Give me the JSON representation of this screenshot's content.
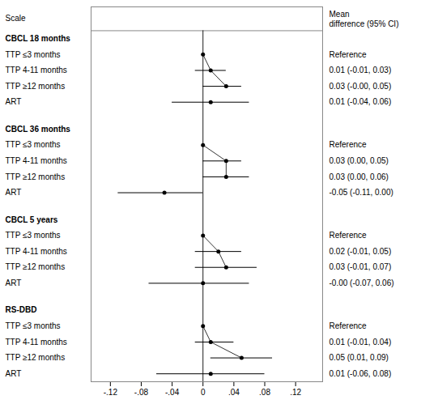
{
  "chart_data": {
    "type": "forest",
    "column_headers": [
      "Scale",
      "Mean\ndifference (95% CI)"
    ],
    "color": "#000000",
    "reference_line": 0,
    "xlim": [
      -0.145,
      0.155
    ],
    "xticks": [
      {
        "value": -0.12,
        "label": "-.12"
      },
      {
        "value": -0.08,
        "label": "-.08"
      },
      {
        "value": -0.04,
        "label": "-.04"
      },
      0,
      {
        "value": 0.04,
        "label": ".04"
      },
      {
        "value": 0.08,
        "label": ".08"
      },
      {
        "value": 0.12,
        "label": ".12"
      }
    ],
    "groups": [
      {
        "title": "CBCL 18 months",
        "rows": [
          {
            "label": "TTP ≤3 months",
            "value": 0.0,
            "ci_low": null,
            "ci_high": null,
            "text": "Reference",
            "connected": true
          },
          {
            "label": "TTP 4-11 months",
            "value": 0.01,
            "ci_low": -0.01,
            "ci_high": 0.03,
            "text": "0.01 (-0.01, 0.03)",
            "connected": true
          },
          {
            "label": "TTP ≥12 months",
            "value": 0.03,
            "ci_low": -0.0,
            "ci_high": 0.05,
            "text": "0.03 (-0.00, 0.05)",
            "connected": true
          },
          {
            "label": "ART",
            "value": 0.01,
            "ci_low": -0.04,
            "ci_high": 0.06,
            "text": "0.01 (-0.04, 0.06)",
            "connected": false
          }
        ]
      },
      {
        "title": "CBCL 36 months",
        "rows": [
          {
            "label": "TTP ≤3 months",
            "value": 0.0,
            "ci_low": null,
            "ci_high": null,
            "text": "Reference",
            "connected": true
          },
          {
            "label": "TTP 4-11 months",
            "value": 0.03,
            "ci_low": 0.0,
            "ci_high": 0.05,
            "text": "0.03 (0.00, 0.05)",
            "connected": true
          },
          {
            "label": "TTP ≥12 months",
            "value": 0.03,
            "ci_low": 0.0,
            "ci_high": 0.06,
            "text": "0.03 (0.00, 0.06)",
            "connected": true
          },
          {
            "label": "ART",
            "value": -0.05,
            "ci_low": -0.11,
            "ci_high": 0.0,
            "text": "-0.05 (-0.11, 0.00)",
            "connected": false
          }
        ]
      },
      {
        "title": "CBCL 5 years",
        "rows": [
          {
            "label": "TTP ≤3 months",
            "value": 0.0,
            "ci_low": null,
            "ci_high": null,
            "text": "Reference",
            "connected": true
          },
          {
            "label": "TTP 4-11 months",
            "value": 0.02,
            "ci_low": -0.01,
            "ci_high": 0.05,
            "text": "0.02 (-0.01, 0.05)",
            "connected": true
          },
          {
            "label": "TTP ≥12 months",
            "value": 0.03,
            "ci_low": -0.01,
            "ci_high": 0.07,
            "text": "0.03 (-0.01, 0.07)",
            "connected": true
          },
          {
            "label": "ART",
            "value": -0.0,
            "ci_low": -0.07,
            "ci_high": 0.06,
            "text": "-0.00 (-0.07, 0.06)",
            "connected": false
          }
        ]
      },
      {
        "title": "RS-DBD",
        "rows": [
          {
            "label": "TTP ≤3 months",
            "value": 0.0,
            "ci_low": null,
            "ci_high": null,
            "text": "Reference",
            "connected": true
          },
          {
            "label": "TTP 4-11 months",
            "value": 0.01,
            "ci_low": -0.01,
            "ci_high": 0.04,
            "text": "0.01 (-0.01, 0.04)",
            "connected": true
          },
          {
            "label": "TTP ≥12 months",
            "value": 0.05,
            "ci_low": 0.01,
            "ci_high": 0.09,
            "text": "0.05 (0.01, 0.09)",
            "connected": true
          },
          {
            "label": "ART",
            "value": 0.01,
            "ci_low": -0.06,
            "ci_high": 0.08,
            "text": "0.01 (-0.06, 0.08)",
            "connected": false
          }
        ]
      }
    ]
  }
}
